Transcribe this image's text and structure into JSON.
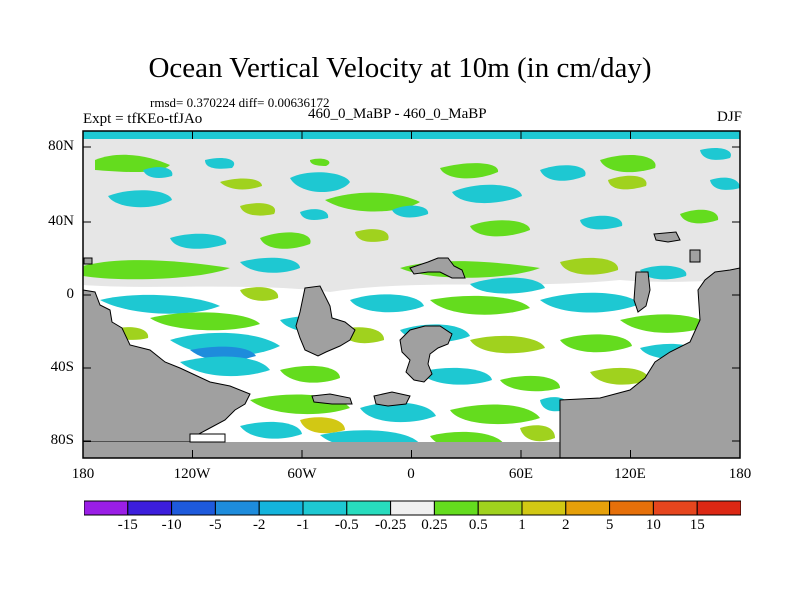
{
  "header": {
    "title": "Ocean Vertical Velocity at 10m (in cm/day)",
    "stats": "rmsd= 0.370224  diff= 0.00636172",
    "left_label": "Expt = tfKEo-tfJAo",
    "center_label": "460_0_MaBP - 460_0_MaBP",
    "right_label": "DJF"
  },
  "map": {
    "x_ticks": [
      "180",
      "120W",
      "60W",
      "0",
      "60E",
      "120E",
      "180"
    ],
    "y_ticks": [
      "80N",
      "40N",
      "0",
      "40S",
      "80S"
    ],
    "colors": {
      "land": "#a0a0a0",
      "near_zero": "#e6e6e6"
    }
  },
  "colorbar": {
    "labels": [
      "-15",
      "-10",
      "-5",
      "-2",
      "-1",
      "-0.5",
      "-0.25",
      "0.25",
      "0.5",
      "1",
      "2",
      "5",
      "10",
      "15"
    ],
    "colors": [
      "#9a1ee6",
      "#3c1edc",
      "#1e5adc",
      "#1e8cdc",
      "#14b4dc",
      "#1ec8d2",
      "#28dcbe",
      "#f0f0f0",
      "#64dc1e",
      "#a0d21e",
      "#d2c814",
      "#e6a00a",
      "#e6700a",
      "#e6461e",
      "#dc2814"
    ]
  }
}
